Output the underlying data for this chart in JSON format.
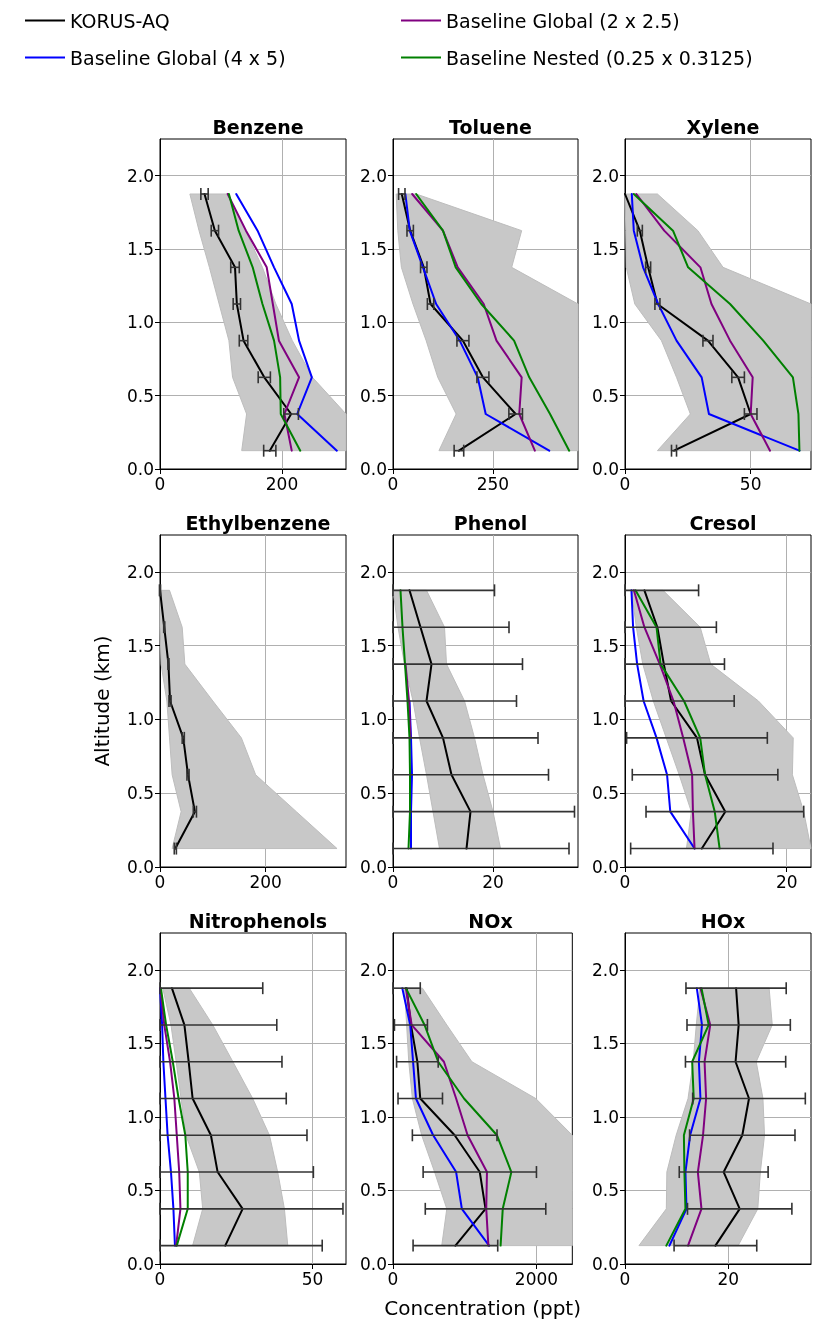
{
  "chart_data": [
    {
      "type": "line",
      "orientation": "horizontal",
      "title": "Benzene",
      "legend": "top",
      "grid": true,
      "xlim": [
        0,
        305
      ],
      "xticks": [
        0,
        200
      ],
      "ylim": [
        0,
        2.25
      ],
      "yticks": [
        {
          "value": 0,
          "label": "0.0"
        },
        {
          "value": 0.5,
          "label": "0.5"
        },
        {
          "value": 1,
          "label": "1.0"
        },
        {
          "value": 1.5,
          "label": "1.5"
        },
        {
          "value": 2,
          "label": "2.0"
        }
      ],
      "series": [
        {
          "name": "KORUS-AQ",
          "color": "#000000",
          "x": [
            1.875,
            1.625,
            1.375,
            1.125,
            0.875,
            0.625,
            0.375,
            0.125
          ],
          "values": [
            73,
            90,
            123,
            126,
            137,
            171,
            215,
            180
          ],
          "errors": [
            6,
            6,
            7,
            6,
            7,
            10,
            12,
            10
          ],
          "lower": [
            49,
            64,
            81,
            97,
            113,
            119,
            142,
            134
          ],
          "upper": [
            111,
            140,
            168,
            190,
            217,
            250,
            305,
            305
          ]
        },
        {
          "name": "Baseline Global (4 x 5)",
          "color": "#0000ff",
          "x": [
            1.875,
            1.625,
            1.375,
            1.125,
            0.875,
            0.625,
            0.375,
            0.125
          ],
          "values": [
            125,
            160,
            187,
            216,
            228,
            249,
            225,
            290
          ]
        },
        {
          "name": "Baseline Global (2 x 2.5)",
          "color": "#800080",
          "x": [
            1.875,
            1.625,
            1.375,
            1.125,
            0.875,
            0.625,
            0.375,
            0.125
          ],
          "values": [
            111,
            141,
            175,
            185,
            195,
            228,
            204,
            216
          ]
        },
        {
          "name": "Baseline Nested (0.25 x 0.3125)",
          "color": "#008000",
          "x": [
            1.875,
            1.625,
            1.375,
            1.125,
            0.875,
            0.625,
            0.375,
            0.125
          ],
          "values": [
            113,
            129,
            152,
            168,
            187,
            197,
            198,
            230
          ]
        }
      ]
    },
    {
      "type": "line",
      "orientation": "horizontal",
      "title": "Toluene",
      "grid": true,
      "xlim": [
        0,
        463
      ],
      "xticks": [
        0,
        250
      ],
      "ylim": [
        0,
        2.25
      ],
      "yticks": [
        {
          "value": 0,
          "label": "0.0"
        },
        {
          "value": 0.5,
          "label": "0.5"
        },
        {
          "value": 1,
          "label": "1.0"
        },
        {
          "value": 1.5,
          "label": "1.5"
        },
        {
          "value": 2,
          "label": "2.0"
        }
      ],
      "series": [
        {
          "color": "#000000",
          "x": [
            1.875,
            1.625,
            1.375,
            1.125,
            0.875,
            0.625,
            0.375,
            0.125
          ],
          "values": [
            22,
            43,
            77,
            94,
            175,
            225,
            307,
            165
          ],
          "errors": [
            8,
            8,
            8,
            8,
            15,
            15,
            17,
            12
          ],
          "lower": [
            8,
            12,
            21,
            50,
            83,
            112,
            158,
            115
          ],
          "upper": [
            58,
            322,
            297,
            463,
            463,
            463,
            463,
            463
          ]
        },
        {
          "color": "#0000ff",
          "x": [
            1.875,
            1.625,
            1.375,
            1.125,
            0.875,
            0.625,
            0.375,
            0.125
          ],
          "values": [
            31,
            42,
            75,
            108,
            167,
            212,
            232,
            391
          ]
        },
        {
          "color": "#800080",
          "x": [
            1.875,
            1.625,
            1.375,
            1.125,
            0.875,
            0.625,
            0.375,
            0.125
          ],
          "values": [
            48,
            125,
            162,
            227,
            259,
            322,
            316,
            355
          ]
        },
        {
          "color": "#008000",
          "x": [
            1.875,
            1.625,
            1.375,
            1.125,
            0.875,
            0.625,
            0.375,
            0.125
          ],
          "values": [
            58,
            125,
            157,
            221,
            303,
            341,
            393,
            441
          ]
        }
      ]
    },
    {
      "type": "line",
      "orientation": "horizontal",
      "title": "Xylene",
      "grid": true,
      "xlim": [
        0,
        74
      ],
      "xticks": [
        0,
        50
      ],
      "ylim": [
        0,
        2.25
      ],
      "yticks": [
        {
          "value": 0,
          "label": "0.0"
        },
        {
          "value": 0.5,
          "label": "0.5"
        },
        {
          "value": 1,
          "label": "1.0"
        },
        {
          "value": 1.5,
          "label": "1.5"
        },
        {
          "value": 2,
          "label": "2.0"
        }
      ],
      "series": [
        {
          "color": "#000000",
          "x": [
            1.875,
            1.625,
            1.375,
            1.125,
            0.875,
            0.625,
            0.375,
            0.125
          ],
          "values": [
            0,
            5.9,
            9.2,
            12.9,
            33,
            45,
            50,
            19.5
          ],
          "errors": [
            null,
            1,
            1,
            1,
            2,
            2.5,
            2.5,
            1
          ],
          "lower": [
            0,
            0.3,
            0.5,
            3.9,
            14.5,
            20.5,
            26,
            12.9
          ],
          "upper": [
            12.9,
            29,
            39,
            74,
            74,
            74,
            74,
            74
          ]
        },
        {
          "color": "#0000ff",
          "x": [
            1.875,
            1.625,
            1.375,
            1.125,
            0.875,
            0.625,
            0.375,
            0.125
          ],
          "values": [
            2.7,
            3.5,
            7.2,
            13.2,
            20.5,
            30.5,
            33.4,
            69.4
          ]
        },
        {
          "color": "#800080",
          "x": [
            1.875,
            1.625,
            1.375,
            1.125,
            0.875,
            0.625,
            0.375,
            0.125
          ],
          "values": [
            4.5,
            15.6,
            30,
            34.4,
            41.8,
            50.8,
            50,
            57.7
          ]
        },
        {
          "color": "#008000",
          "x": [
            1.875,
            1.625,
            1.375,
            1.125,
            0.875,
            0.625,
            0.375,
            0.125
          ],
          "values": [
            3.5,
            19.1,
            25.1,
            41.8,
            55,
            66.8,
            69,
            69.4
          ]
        }
      ]
    },
    {
      "type": "line",
      "orientation": "horizontal",
      "title": "Ethylbenzene",
      "ylabel": "Altitude (km)",
      "grid": true,
      "xlim": [
        0,
        352
      ],
      "xticks": [
        0,
        200
      ],
      "ylim": [
        0,
        2.25
      ],
      "yticks": [
        {
          "value": 0,
          "label": "0.0"
        },
        {
          "value": 0.5,
          "label": "0.5"
        },
        {
          "value": 1,
          "label": "1.0"
        },
        {
          "value": 1.5,
          "label": "1.5"
        },
        {
          "value": 2,
          "label": "2.0"
        }
      ],
      "series": [
        {
          "color": "#000000",
          "x": [
            1.875,
            1.625,
            1.375,
            1.125,
            0.875,
            0.625,
            0.375,
            0.125
          ],
          "values": [
            0,
            8,
            16,
            19,
            44,
            53,
            66,
            29
          ],
          "errors": [
            1,
            1,
            1,
            2,
            2,
            2,
            3,
            2
          ],
          "lower": [
            0,
            0,
            2,
            13,
            18,
            23,
            40,
            23
          ],
          "upper": [
            18,
            42,
            47,
            100,
            154,
            181,
            258,
            335
          ]
        }
      ]
    },
    {
      "type": "line",
      "orientation": "horizontal",
      "title": "Phenol",
      "grid": true,
      "xlim": [
        0,
        37
      ],
      "xticks": [
        0,
        20
      ],
      "ylim": [
        0,
        2.25
      ],
      "yticks": [
        {
          "value": 0,
          "label": "0.0"
        },
        {
          "value": 0.5,
          "label": "0.5"
        },
        {
          "value": 1,
          "label": "1.0"
        },
        {
          "value": 1.5,
          "label": "1.5"
        },
        {
          "value": 2,
          "label": "2.0"
        }
      ],
      "series": [
        {
          "color": "#000000",
          "x": [
            1.875,
            1.625,
            1.375,
            1.125,
            0.875,
            0.625,
            0.375,
            0.125
          ],
          "values": [
            3.3,
            5.5,
            7.7,
            6.7,
            10,
            11.7,
            15.5,
            14.7
          ],
          "errors": [
            [
              0,
              20.3
            ],
            [
              0,
              23.2
            ],
            [
              0,
              25.9
            ],
            [
              0,
              24.7
            ],
            [
              0,
              29
            ],
            [
              0,
              31.1
            ],
            [
              0,
              36.3
            ],
            [
              0,
              35.2
            ]
          ],
          "lower": [
            0,
            1,
            2.3,
            4,
            5.3,
            6.7,
            8,
            9.3
          ],
          "upper": [
            6.7,
            10.3,
            10.7,
            14.3,
            16.3,
            18,
            20,
            21.5
          ]
        },
        {
          "color": "#0000ff",
          "x": [
            1.125,
            0.875,
            0.625,
            0.375,
            0.125
          ],
          "values": [
            3.3,
            3.6,
            3.8,
            3.6,
            3.6
          ]
        },
        {
          "color": "#800080",
          "x": [
            1.375,
            1.125,
            0.875
          ],
          "values": [
            2.5,
            3.2,
            3.5
          ]
        },
        {
          "color": "#008000",
          "x": [
            1.875,
            1.625,
            1.375,
            1.125,
            0.875,
            0.625,
            0.375,
            0.125
          ],
          "values": [
            1.5,
            1.9,
            2.4,
            2.9,
            3.3,
            3.4,
            3.4,
            3.1
          ]
        }
      ]
    },
    {
      "type": "line",
      "orientation": "horizontal",
      "title": "Cresol",
      "grid": true,
      "xlim": [
        0,
        23
      ],
      "xticks": [
        0,
        20
      ],
      "ylim": [
        0,
        2.25
      ],
      "yticks": [
        {
          "value": 0,
          "label": "0.0"
        },
        {
          "value": 0.5,
          "label": "0.5"
        },
        {
          "value": 1,
          "label": "1.0"
        },
        {
          "value": 1.5,
          "label": "1.5"
        },
        {
          "value": 2,
          "label": "2.0"
        }
      ],
      "series": [
        {
          "color": "#000000",
          "x": [
            1.875,
            1.625,
            1.375,
            1.125,
            0.875,
            0.625,
            0.375,
            0.125
          ],
          "values": [
            2.4,
            4,
            4.8,
            5.7,
            8.9,
            9.9,
            12.4,
            9.5
          ],
          "errors": [
            [
              0,
              9.1
            ],
            [
              0,
              11.3
            ],
            [
              0,
              12.3
            ],
            [
              0,
              13.5
            ],
            [
              0.2,
              17.6
            ],
            [
              0.9,
              18.9
            ],
            [
              2.6,
              22.1
            ],
            [
              0.7,
              18.3
            ]
          ],
          "lower": [
            0.8,
            1.4,
            2.2,
            3.5,
            5.1,
            6.7,
            8.2,
            7.6
          ],
          "upper": [
            4.7,
            9.3,
            10.6,
            16.5,
            20.8,
            20.7,
            22.1,
            23
          ]
        },
        {
          "color": "#0000ff",
          "x": [
            1.875,
            1.625,
            1.375,
            1.125,
            0.875,
            0.625,
            0.375,
            0.125
          ],
          "values": [
            0.8,
            1,
            1.5,
            2.3,
            3.9,
            5.2,
            5.6,
            8.6
          ]
        },
        {
          "color": "#800080",
          "x": [
            1.875,
            1.625,
            1.375,
            1.125,
            0.875,
            0.625,
            0.375,
            0.125
          ],
          "values": [
            1.1,
            2.4,
            4.3,
            6,
            7.2,
            8.3,
            8.4,
            8.6
          ]
        },
        {
          "color": "#008000",
          "x": [
            1.875,
            1.625,
            1.375,
            1.125,
            0.875,
            0.625,
            0.375,
            0.125
          ],
          "values": [
            1.3,
            3.9,
            4.4,
            7.3,
            9.3,
            9.9,
            11.1,
            11.7
          ]
        }
      ]
    },
    {
      "type": "line",
      "orientation": "horizontal",
      "title": "Nitrophenols",
      "grid": true,
      "xlim": [
        0,
        61
      ],
      "xticks": [
        0,
        50
      ],
      "ylim": [
        0,
        2.25
      ],
      "yticks": [
        {
          "value": 0,
          "label": "0.0"
        },
        {
          "value": 0.5,
          "label": "0.5"
        },
        {
          "value": 1,
          "label": "1.0"
        },
        {
          "value": 1.5,
          "label": "1.5"
        },
        {
          "value": 2,
          "label": "2.0"
        }
      ],
      "series": [
        {
          "color": "#000000",
          "x": [
            1.875,
            1.625,
            1.375,
            1.125,
            0.875,
            0.625,
            0.375,
            0.125
          ],
          "values": [
            3.9,
            8,
            9.4,
            10.7,
            16.7,
            18.9,
            27.1,
            21.4
          ],
          "errors": [
            [
              0,
              33.7
            ],
            [
              0,
              38.3
            ],
            [
              0,
              40
            ],
            [
              0,
              41.4
            ],
            [
              0,
              48.2
            ],
            [
              0,
              50.3
            ],
            [
              0,
              60
            ],
            [
              0,
              53.2
            ]
          ],
          "lower": [
            0.9,
            3.6,
            5.3,
            6.9,
            8.5,
            12.9,
            14,
            10.7
          ],
          "upper": [
            9.6,
            17.3,
            23.9,
            30.4,
            35.9,
            38.6,
            40.8,
            41.9
          ]
        },
        {
          "color": "#0000ff",
          "x": [
            1.875,
            1.625,
            1.375,
            1.125,
            0.875,
            0.625,
            0.375,
            0.125
          ],
          "values": [
            0,
            0.7,
            1.1,
            1.8,
            2.5,
            3.6,
            4.4,
            4.9
          ]
        },
        {
          "color": "#800080",
          "x": [
            1.875,
            1.625,
            1.375,
            1.125,
            0.875,
            0.625,
            0.375,
            0.125
          ],
          "values": [
            0.1,
            1.4,
            3.3,
            4.7,
            5.5,
            6.3,
            6.7,
            5.3
          ]
        },
        {
          "color": "#008000",
          "x": [
            1.875,
            1.625,
            1.375,
            1.125,
            0.875,
            0.625,
            0.375,
            0.125
          ],
          "values": [
            0.3,
            2,
            4.2,
            6.1,
            8.3,
            9.1,
            9.1,
            5.5
          ]
        }
      ]
    },
    {
      "type": "line",
      "orientation": "horizontal",
      "title": "NOx",
      "xlabel": "Concentration (ppt)",
      "grid": true,
      "xlim": [
        0,
        2500
      ],
      "xticks": [
        0,
        2000
      ],
      "ylim": [
        0,
        2.25
      ],
      "yticks": [
        {
          "value": 0,
          "label": "0.0"
        },
        {
          "value": 0.5,
          "label": "0.5"
        },
        {
          "value": 1,
          "label": "1.0"
        },
        {
          "value": 1.5,
          "label": "1.5"
        },
        {
          "value": 2,
          "label": "2.0"
        }
      ],
      "series": [
        {
          "color": "#000000",
          "x": [
            1.875,
            1.625,
            1.375,
            1.125,
            0.875,
            0.625,
            0.375,
            0.125
          ],
          "values": [
            190,
            250,
            340,
            380,
            860,
            1210,
            1290,
            870
          ],
          "errors": [
            [
              0,
              380
            ],
            230,
            290,
            310,
            590,
            790,
            840,
            590
          ],
          "lower": [
            160,
            190,
            220,
            270,
            400,
            580,
            750,
            680
          ],
          "upper": [
            410,
            750,
            1100,
            1990,
            2500,
            2500,
            2500,
            2500
          ]
        },
        {
          "color": "#0000ff",
          "x": [
            1.875,
            1.625,
            1.375,
            1.125,
            0.875,
            0.625,
            0.375,
            0.125
          ],
          "values": [
            130,
            240,
            280,
            320,
            560,
            880,
            960,
            1340
          ]
        },
        {
          "color": "#800080",
          "x": [
            1.875,
            1.625,
            1.375,
            1.125,
            0.875,
            0.625,
            0.375,
            0.125
          ],
          "values": [
            180,
            260,
            710,
            880,
            1040,
            1310,
            1300,
            1330
          ]
        },
        {
          "color": "#008000",
          "x": [
            1.875,
            1.625,
            1.375,
            1.125,
            0.875,
            0.625,
            0.375,
            0.125
          ],
          "values": [
            180,
            440,
            630,
            990,
            1450,
            1650,
            1530,
            1500
          ]
        }
      ]
    },
    {
      "type": "line",
      "orientation": "horizontal",
      "title": "HOx",
      "grid": true,
      "xlim": [
        0,
        36
      ],
      "xticks": [
        0,
        20
      ],
      "ylim": [
        0,
        2.25
      ],
      "yticks": [
        {
          "value": 0,
          "label": "0.0"
        },
        {
          "value": 0.5,
          "label": "0.5"
        },
        {
          "value": 1,
          "label": "1.0"
        },
        {
          "value": 1.5,
          "label": "1.5"
        },
        {
          "value": 2,
          "label": "2.0"
        }
      ],
      "series": [
        {
          "color": "#000000",
          "x": [
            1.875,
            1.625,
            1.375,
            1.125,
            0.875,
            0.625,
            0.375,
            0.125
          ],
          "values": [
            21.5,
            22,
            21.4,
            24,
            22.7,
            19.1,
            22.2,
            17.5
          ],
          "errors": [
            9.7,
            10,
            9.7,
            10.9,
            10.2,
            8.6,
            10.1,
            8
          ],
          "lower": [
            14.5,
            13.8,
            13.2,
            12.2,
            9.9,
            8.1,
            8,
            2.7
          ],
          "upper": [
            27.9,
            28.5,
            25.4,
            26.7,
            27,
            26.2,
            25.7,
            21.9
          ]
        },
        {
          "color": "#0000ff",
          "x": [
            1.875,
            1.625,
            1.375,
            1.125,
            0.875,
            0.625,
            0.375,
            0.125
          ],
          "values": [
            13.9,
            14.9,
            14.3,
            14.6,
            12.6,
            11.7,
            11.9,
            8.6
          ]
        },
        {
          "color": "#800080",
          "x": [
            1.875,
            1.625,
            1.375,
            1.125,
            0.875,
            0.625,
            0.375,
            0.125
          ],
          "values": [
            14.6,
            16.5,
            15.4,
            15.7,
            15.1,
            14.1,
            14.8,
            12.2
          ]
        },
        {
          "color": "#008000",
          "x": [
            1.875,
            1.625,
            1.375,
            1.125,
            0.875,
            0.625,
            0.375,
            0.125
          ],
          "values": [
            14.8,
            16.2,
            13,
            13.3,
            11.4,
            11.5,
            11.7,
            8
          ]
        }
      ]
    }
  ]
}
